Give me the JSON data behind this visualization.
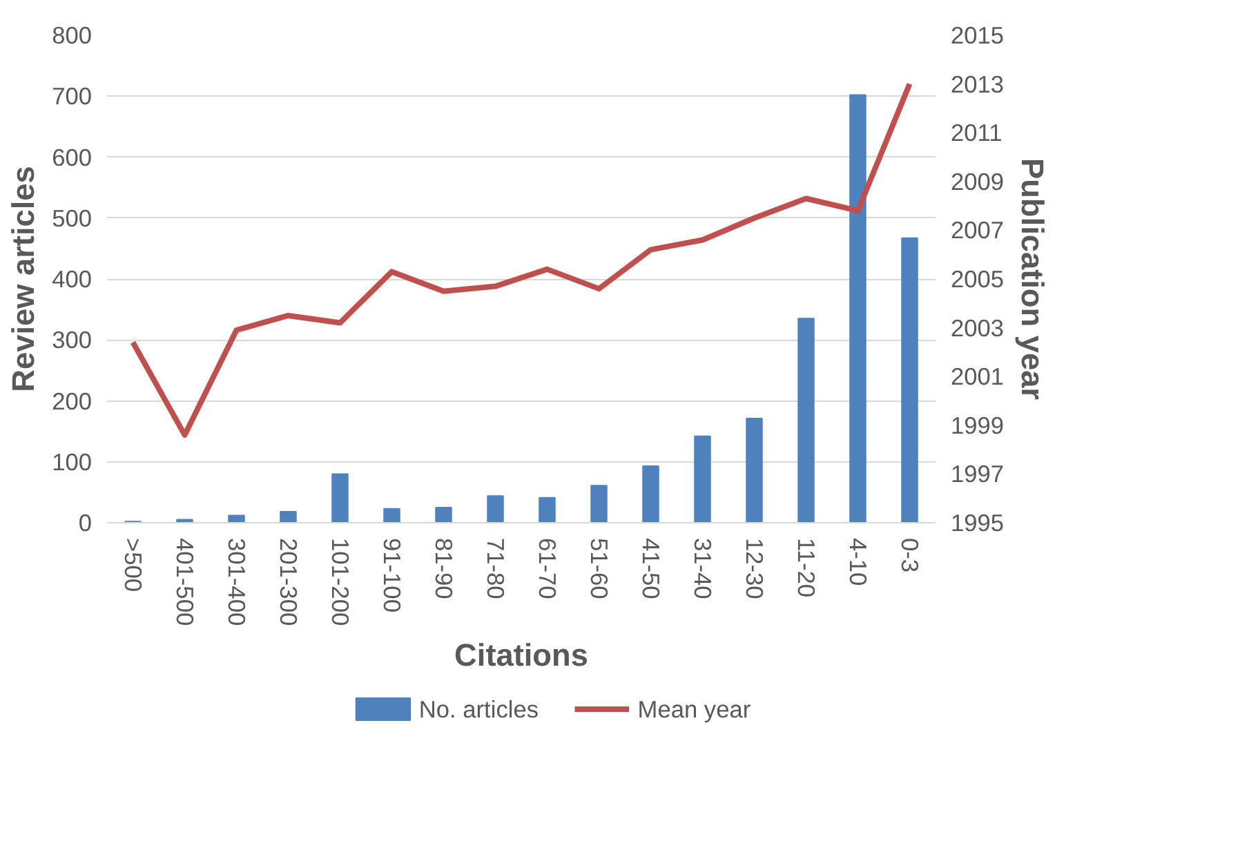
{
  "chart_data": {
    "type": "bar",
    "xlabel": "Citations",
    "ylabel": "Review articles",
    "y2label": "Publication year",
    "categories": [
      ">500",
      "401-500",
      "301-400",
      "201-300",
      "101-200",
      "91-100",
      "81-90",
      "71-80",
      "61-70",
      "51-60",
      "41-50",
      "31-40",
      "12-30",
      "11-20",
      "4-10",
      "0-3"
    ],
    "series": [
      {
        "name": "No. articles",
        "color": "#4f81bd",
        "values": [
          2,
          5,
          12,
          18,
          80,
          23,
          25,
          44,
          41,
          61,
          93,
          142,
          171,
          335,
          702,
          467
        ]
      },
      {
        "name": "Mean year",
        "type": "line",
        "axis": "y2",
        "color": "#c0504d",
        "values": [
          2002.4,
          1998.6,
          2002.9,
          2003.5,
          2003.2,
          2005.3,
          2004.5,
          2004.7,
          2005.4,
          2004.6,
          2006.2,
          2006.6,
          2007.5,
          2008.3,
          2007.8,
          2013.0
        ]
      }
    ],
    "ylim": [
      0,
      800
    ],
    "yticks": [
      0,
      100,
      200,
      300,
      400,
      500,
      600,
      700,
      800
    ],
    "y2lim": [
      1995,
      2015
    ],
    "y2ticks": [
      1995,
      1997,
      1999,
      2001,
      2003,
      2005,
      2007,
      2009,
      2011,
      2013,
      2015
    ],
    "grid": "y",
    "legend": "bottom",
    "marker": "none",
    "line_style": "solid"
  }
}
